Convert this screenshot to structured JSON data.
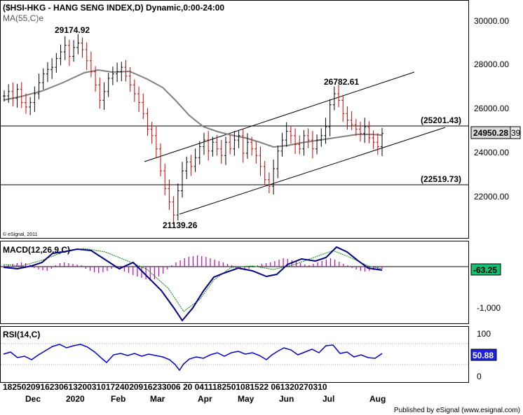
{
  "chart_data": [
    {
      "type": "ohlc",
      "title": "($HSI-HKG - HANG SENG INDEX,D) Dynamic,0:00-24:00",
      "overlay": "MA(55,C)e",
      "copyright": "© eSignal, 2011",
      "ylim": [
        20000,
        30800
      ],
      "y_ticks": [
        "30000.00",
        "28000.00",
        "26000.00",
        "24000.00",
        "22000.00"
      ],
      "last_value": "24950.28",
      "last_tag_suffix": "39",
      "colors": {
        "up": "#000000",
        "down": "#cc0000",
        "ma": "#808080"
      },
      "annotations": {
        "high_dec": "29174.92",
        "low_mar": "21139.26",
        "high_jul": "26782.61",
        "resistance": "(25201.43)",
        "support": "(22519.73)"
      },
      "levels": [
        25201.43,
        22519.73
      ],
      "high_jan": 29174.92,
      "low_mar_value": 21139.26,
      "high_jul_value": 26782.61
    },
    {
      "type": "macd",
      "label": "MACD(12,26,9,C)",
      "y_ticks": [
        "-1,000"
      ],
      "last_value": "-63.25",
      "colors": {
        "macd": "#000080",
        "signal": "#008000",
        "histogram": "#c000c0"
      }
    },
    {
      "type": "rsi",
      "label": "RSI(14,C)",
      "y_ticks": [
        "100",
        "0"
      ],
      "last_value": "50.88",
      "colors": {
        "rsi": "#0000cc"
      }
    }
  ],
  "x_axis": {
    "day_labels": "18250209162306132003101724020916233006 20 0411182501081522 061320270310",
    "month_labels": [
      "Dec",
      "2020",
      "Feb",
      "Mar",
      "Apr",
      "May",
      "Jun",
      "Jul",
      "Aug"
    ]
  },
  "footer": "Published by eSignal (www.esignal.com)"
}
